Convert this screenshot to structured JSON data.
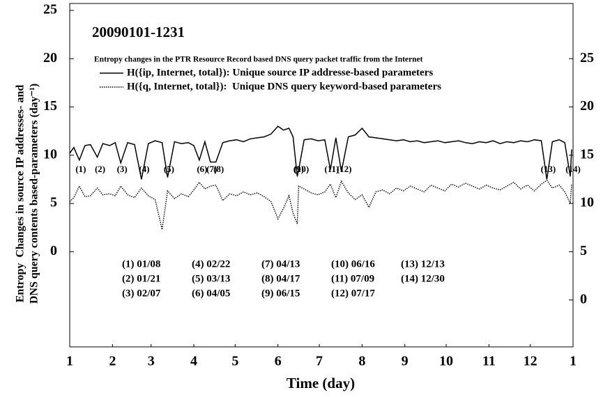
{
  "chart_data": {
    "type": "line",
    "title": "20090101-1231",
    "subtitle": "Entropy changes in the PTR Resource Record based DNS query packet traffic from the Internet",
    "xlabel": "Time (day)",
    "ylabel": [
      "Entropy  Changes in source IP addresses- and",
      "DNS query contents based-parameters (day⁻¹)"
    ],
    "x": [
      1,
      4,
      8,
      12,
      16,
      21,
      25,
      30,
      34,
      38,
      43,
      48,
      53,
      58,
      63,
      68,
      72,
      77,
      82,
      87,
      91,
      95,
      99,
      103,
      107,
      112,
      117,
      122,
      127,
      132,
      137,
      142,
      147,
      152,
      156,
      160,
      163,
      166,
      167,
      171,
      176,
      181,
      186,
      190,
      194,
      198,
      203,
      208,
      213,
      218,
      223,
      228,
      233,
      238,
      243,
      248,
      253,
      258,
      263,
      268,
      273,
      278,
      283,
      288,
      293,
      298,
      303,
      308,
      313,
      318,
      323,
      328,
      333,
      338,
      343,
      347,
      351,
      356,
      360,
      364,
      365
    ],
    "xlim": [
      1,
      366
    ],
    "xticks": [
      {
        "value": 1,
        "label": "1"
      },
      {
        "value": 32,
        "label": "2"
      },
      {
        "value": 60,
        "label": "3"
      },
      {
        "value": 91,
        "label": "4"
      },
      {
        "value": 121,
        "label": "5"
      },
      {
        "value": 152,
        "label": "6"
      },
      {
        "value": 182,
        "label": "7"
      },
      {
        "value": 213,
        "label": "8"
      },
      {
        "value": 244,
        "label": "9"
      },
      {
        "value": 274,
        "label": "10"
      },
      {
        "value": 305,
        "label": "11"
      },
      {
        "value": 335,
        "label": "12"
      },
      {
        "value": 366,
        "label": "1"
      }
    ],
    "ylim": [
      -10,
      25
    ],
    "yticks": [
      0,
      5,
      10,
      15,
      20,
      25
    ],
    "y2lim": [
      -5,
      30
    ],
    "y2ticks": [
      0,
      5,
      10,
      15,
      20,
      25
    ],
    "series": [
      {
        "name": "H({ip, Internet, total}): Unique source IP addresse-based parameters",
        "color": "#000000",
        "line_style": "solid",
        "values": [
          10.2,
          10.8,
          9.5,
          11.0,
          11.1,
          9.8,
          11.2,
          11.0,
          11.3,
          9.2,
          11.3,
          11.1,
          7.5,
          11.2,
          11.5,
          11.3,
          7.7,
          11.4,
          11.2,
          11.3,
          11.0,
          9.5,
          11.4,
          9.3,
          9.3,
          11.3,
          11.5,
          11.6,
          11.4,
          11.7,
          11.8,
          11.9,
          12.2,
          13.0,
          12.6,
          12.8,
          11.9,
          7.8,
          8.5,
          11.6,
          11.7,
          11.5,
          11.6,
          8.5,
          11.8,
          8.3,
          11.9,
          12.1,
          12.8,
          11.9,
          11.8,
          11.7,
          11.6,
          11.5,
          11.6,
          11.4,
          11.5,
          11.3,
          11.4,
          11.5,
          11.3,
          11.4,
          11.5,
          11.3,
          11.2,
          11.4,
          11.3,
          11.5,
          11.2,
          11.4,
          11.3,
          11.5,
          11.4,
          11.6,
          11.5,
          7.5,
          11.4,
          11.6,
          11.3,
          7.8,
          10.6
        ]
      },
      {
        "name": "H({q, Internet, total}):  Unique DNS query keyword-based parameters",
        "color": "#000000",
        "line_style": "dotted",
        "axis": "y2",
        "values": [
          10.2,
          10.6,
          11.8,
          10.7,
          10.8,
          11.6,
          10.9,
          11.0,
          10.8,
          11.8,
          10.9,
          10.6,
          11.6,
          10.8,
          10.4,
          7.3,
          11.3,
          10.5,
          11.0,
          10.7,
          11.4,
          12.2,
          11.5,
          11.8,
          11.9,
          10.3,
          11.0,
          10.8,
          11.2,
          10.9,
          11.1,
          10.7,
          10.2,
          8.4,
          9.5,
          10.8,
          9.0,
          7.9,
          11.8,
          11.5,
          11.1,
          10.9,
          11.2,
          12.0,
          10.6,
          12.3,
          11.1,
          10.4,
          10.9,
          9.6,
          11.2,
          11.4,
          11.0,
          11.6,
          11.3,
          11.8,
          11.5,
          11.2,
          11.9,
          11.6,
          11.3,
          12.0,
          11.7,
          12.1,
          11.8,
          11.5,
          11.9,
          11.6,
          11.4,
          11.8,
          12.2,
          11.5,
          11.9,
          11.3,
          12.0,
          12.4,
          11.6,
          11.9,
          11.2,
          10.0,
          12.0
        ]
      }
    ],
    "annotations": [
      {
        "label": "(1)",
        "x": 8
      },
      {
        "label": "(2)",
        "x": 21
      },
      {
        "label": "(3)",
        "x": 38
      },
      {
        "label": "(4)",
        "x": 53
      },
      {
        "label": "(5)",
        "x": 72
      },
      {
        "label": "(6)",
        "x": 95
      },
      {
        "label": "(7)",
        "x": 103
      },
      {
        "label": "(8)",
        "x": 107
      },
      {
        "label": "(9)",
        "x": 166
      },
      {
        "label": "(10)",
        "x": 167
      },
      {
        "label": "(11)",
        "x": 190
      },
      {
        "label": "(12)",
        "x": 198
      },
      {
        "label": "(13)",
        "x": 347
      },
      {
        "label": "(14)",
        "x": 364
      }
    ],
    "notes": [
      "(1) 01/08",
      "(2) 01/21",
      "(3) 02/07",
      "(4) 02/22",
      "(5) 03/13",
      "(6) 04/05",
      "(7) 04/13",
      "(8) 04/17",
      "(9) 06/15",
      "(10) 06/16",
      "(11) 07/09",
      "(12) 07/17",
      "(13) 12/13",
      "(14) 12/30"
    ]
  }
}
